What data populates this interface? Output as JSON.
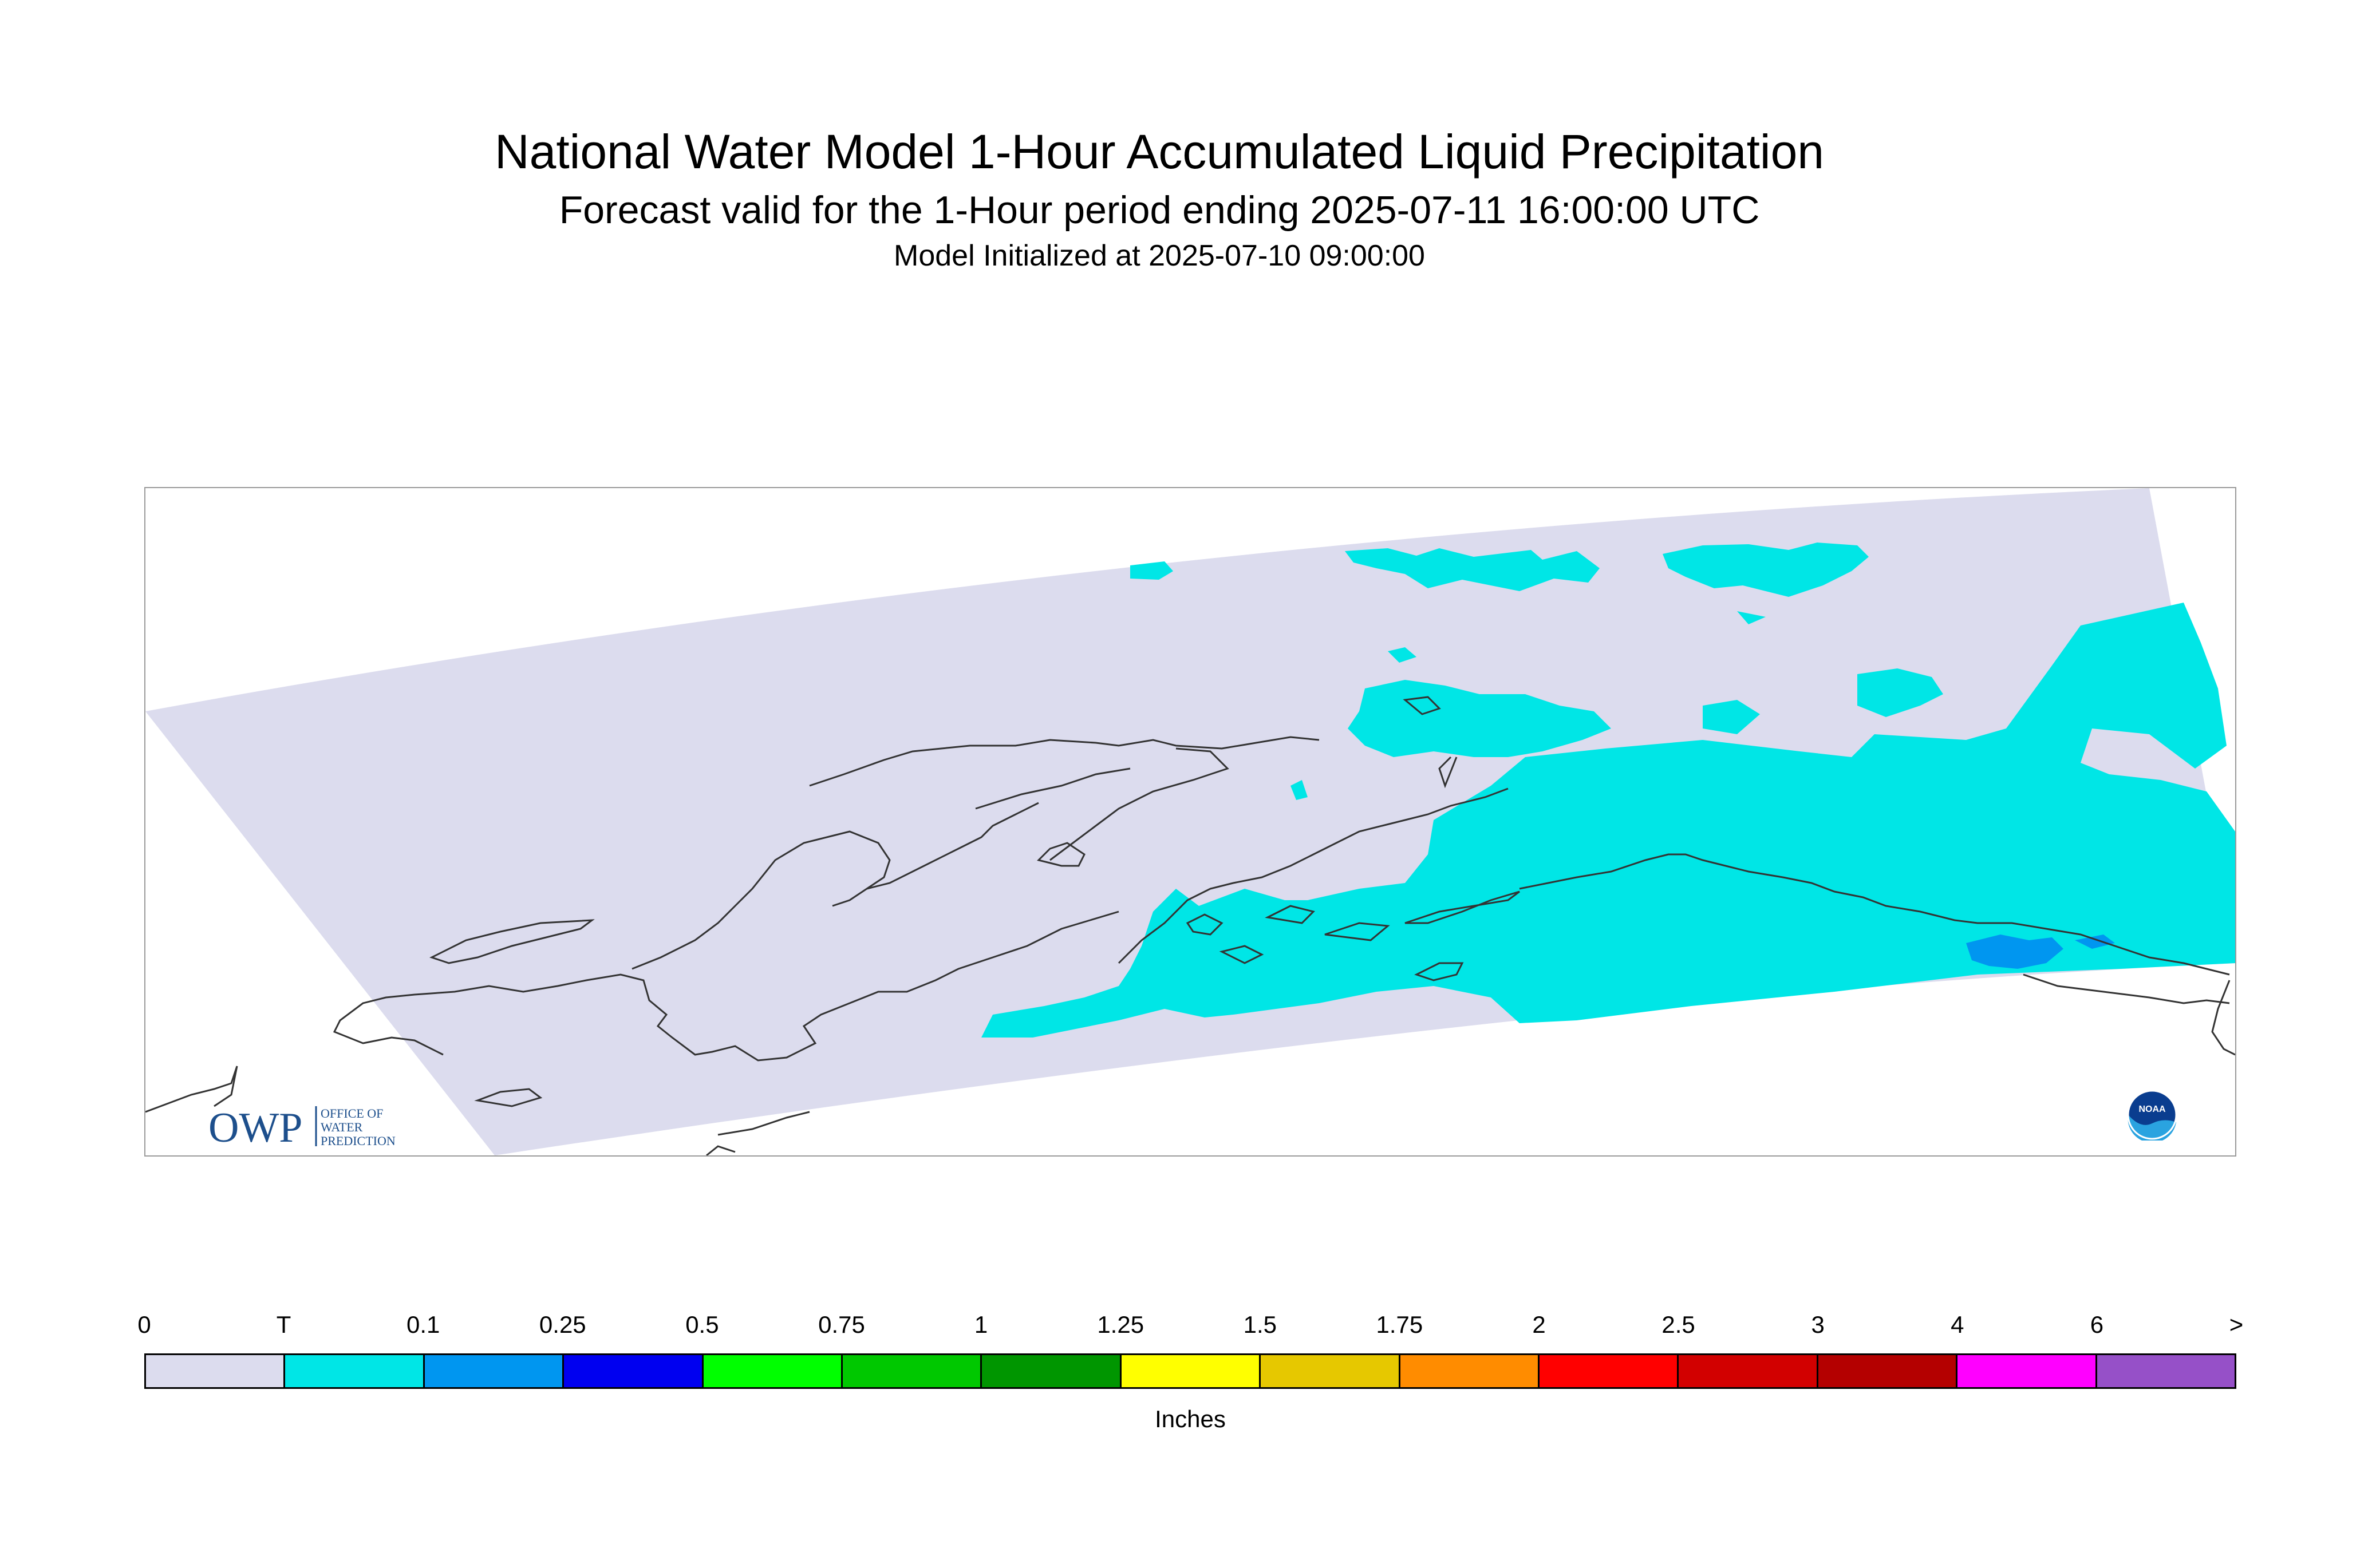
{
  "header": {
    "title": "National Water Model 1-Hour Accumulated Liquid Precipitation",
    "subtitle": "Forecast valid for the 1-Hour period ending 2025-07-11 16:00:00 UTC",
    "init": "Model Initialized at 2025-07-10 09:00:00"
  },
  "logos": {
    "owp_mark": "OWP",
    "owp_line1": "OFFICE OF",
    "owp_line2": "WATER",
    "owp_line3": "PREDICTION",
    "noaa": "NOAA"
  },
  "legend": {
    "labels": [
      "0",
      "T",
      "0.1",
      "0.25",
      "0.5",
      "0.75",
      "1",
      "1.25",
      "1.5",
      "1.75",
      "2",
      "2.5",
      "3",
      "4",
      "6",
      ">"
    ],
    "colors": [
      "#dcdcee",
      "#00e6e6",
      "#0096f0",
      "#0000f0",
      "#00ff00",
      "#00c800",
      "#009600",
      "#ffff00",
      "#e6c800",
      "#ff8c00",
      "#ff0000",
      "#d20000",
      "#b40000",
      "#ff00ff",
      "#9650c8"
    ],
    "units": "Inches"
  },
  "map": {
    "domain_color": "#dcdcee",
    "trace_color": "#00e6e6",
    "light_color": "#0096f0",
    "coast_color": "#333333"
  }
}
